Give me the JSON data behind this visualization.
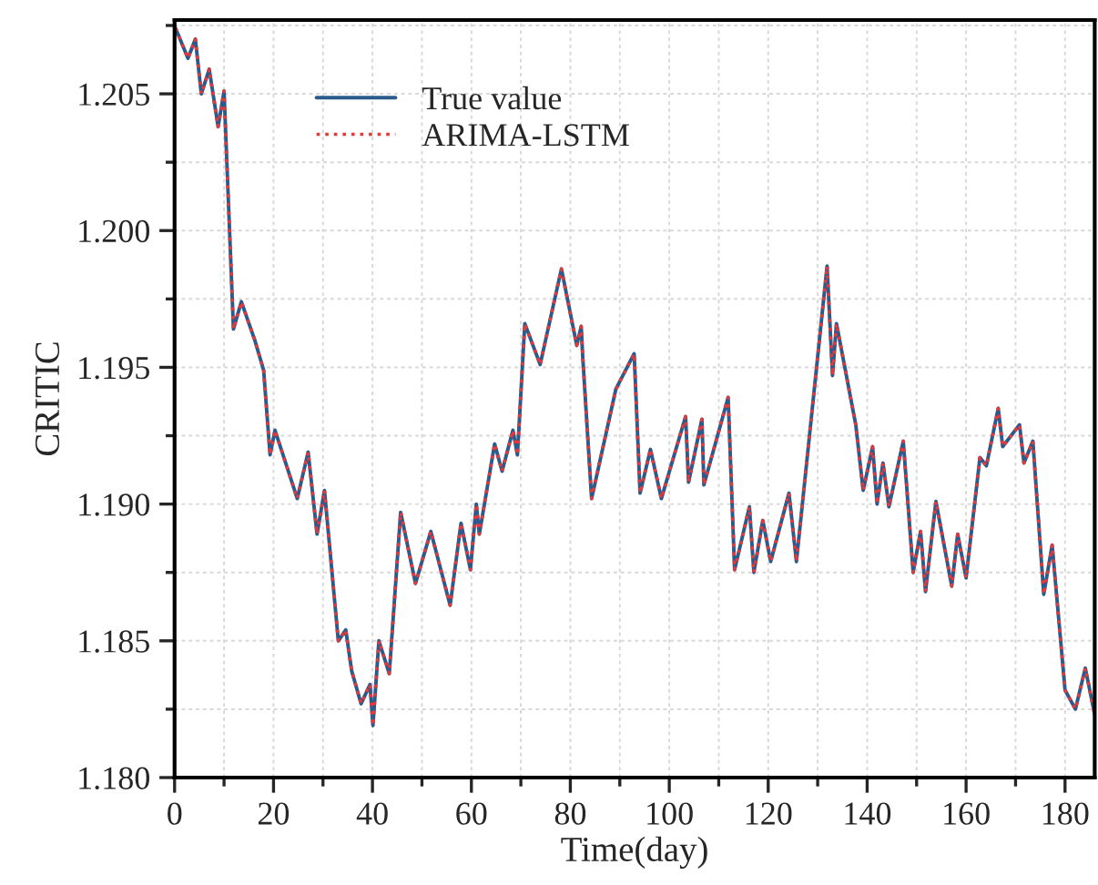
{
  "chart_data": {
    "type": "line",
    "xlabel": "Time(day)",
    "ylabel": "CRITIC",
    "x": [
      0.2,
      2.7,
      4.2,
      5.4,
      7,
      8.8,
      10,
      11.9,
      13.5,
      16.2,
      18,
      19.3,
      20.3,
      24.8,
      27,
      28.8,
      30.3,
      33.1,
      34.6,
      35.8,
      37.7,
      39.5,
      40.1,
      41.3,
      43.4,
      45.7,
      48.7,
      51.8,
      55.7,
      57.9,
      59.8,
      61,
      61.6,
      64.7,
      66.2,
      68.4,
      69.3,
      70.8,
      73.9,
      78.2,
      81.3,
      82.2,
      82.5,
      84.3,
      89.2,
      92.9,
      94.1,
      96.2,
      98.4,
      103.3,
      103.9,
      106.6,
      107,
      111.9,
      113.2,
      116.2,
      117.1,
      118.9,
      120.5,
      124.2,
      125.7,
      131.9,
      133,
      133.8,
      137.7,
      139.2,
      141.1,
      142,
      143.2,
      144.4,
      147.3,
      149.3,
      150.8,
      151.8,
      153.9,
      157.1,
      158.3,
      160,
      162.8,
      164.1,
      166.5,
      167.4,
      170.8,
      171.7,
      173.5,
      175.7,
      177.4,
      180,
      182.1,
      184.1,
      186
    ],
    "series": [
      {
        "name": "True value",
        "color": "#2c5a8c",
        "line_style": "solid",
        "values": [
          1.2074,
          1.2063,
          1.207,
          1.205,
          1.2059,
          1.2038,
          1.2051,
          1.1964,
          1.1974,
          1.196,
          1.1949,
          1.1918,
          1.1927,
          1.1902,
          1.1919,
          1.1889,
          1.1905,
          1.185,
          1.1854,
          1.1839,
          1.1827,
          1.1834,
          1.1819,
          1.185,
          1.1838,
          1.1897,
          1.1871,
          1.189,
          1.1863,
          1.1893,
          1.1876,
          1.19,
          1.1889,
          1.1922,
          1.1912,
          1.1927,
          1.1918,
          1.1966,
          1.1951,
          1.1986,
          1.1958,
          1.1965,
          1.1954,
          1.1902,
          1.1942,
          1.1955,
          1.1904,
          1.192,
          1.1902,
          1.1932,
          1.1908,
          1.1931,
          1.1907,
          1.1939,
          1.1876,
          1.1899,
          1.1875,
          1.1894,
          1.1879,
          1.1904,
          1.1879,
          1.1987,
          1.1947,
          1.1966,
          1.1929,
          1.1905,
          1.1921,
          1.19,
          1.1915,
          1.1899,
          1.1923,
          1.1875,
          1.189,
          1.1868,
          1.1901,
          1.187,
          1.1889,
          1.1873,
          1.1917,
          1.1914,
          1.1935,
          1.1921,
          1.1929,
          1.1915,
          1.1923,
          1.1867,
          1.1885,
          1.1832,
          1.1825,
          1.184,
          1.1823
        ]
      },
      {
        "name": "ARIMA-LSTM",
        "color": "#e03a3a",
        "line_style": "dotted",
        "values": [
          1.2074,
          1.2063,
          1.207,
          1.205,
          1.2059,
          1.2038,
          1.2051,
          1.1964,
          1.1974,
          1.196,
          1.1949,
          1.1918,
          1.1927,
          1.1902,
          1.1919,
          1.1889,
          1.1905,
          1.185,
          1.1854,
          1.1839,
          1.1827,
          1.1834,
          1.1819,
          1.185,
          1.1838,
          1.1897,
          1.1871,
          1.189,
          1.1863,
          1.1893,
          1.1876,
          1.19,
          1.1889,
          1.1922,
          1.1912,
          1.1927,
          1.1918,
          1.1966,
          1.1951,
          1.1986,
          1.1958,
          1.1965,
          1.1954,
          1.1902,
          1.1942,
          1.1955,
          1.1904,
          1.192,
          1.1902,
          1.1932,
          1.1908,
          1.1931,
          1.1907,
          1.1939,
          1.1876,
          1.1899,
          1.1875,
          1.1894,
          1.1879,
          1.1904,
          1.1879,
          1.1987,
          1.1947,
          1.1966,
          1.1929,
          1.1905,
          1.1921,
          1.19,
          1.1915,
          1.1899,
          1.1923,
          1.1875,
          1.189,
          1.1868,
          1.1901,
          1.187,
          1.1889,
          1.1873,
          1.1917,
          1.1914,
          1.1935,
          1.1921,
          1.1929,
          1.1915,
          1.1923,
          1.1867,
          1.1885,
          1.1832,
          1.1825,
          1.184,
          1.1823
        ]
      }
    ],
    "xlim": [
      0,
      186
    ],
    "xticks": [
      0,
      20,
      40,
      60,
      80,
      100,
      120,
      140,
      160,
      180
    ],
    "ylim": [
      1.18,
      1.2077
    ],
    "yticks": [
      {
        "value": 1.18,
        "label": "1.180"
      },
      {
        "value": 1.185,
        "label": "1.185"
      },
      {
        "value": 1.19,
        "label": "1.190"
      },
      {
        "value": 1.195,
        "label": "1.195"
      },
      {
        "value": 1.2,
        "label": "1.200"
      },
      {
        "value": 1.205,
        "label": "1.205"
      }
    ],
    "grid": true,
    "legend": "top left",
    "marker": "none"
  }
}
